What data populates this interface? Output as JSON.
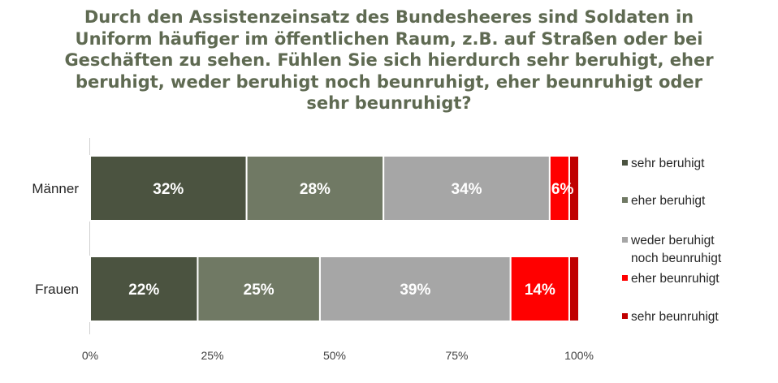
{
  "chart_data": {
    "type": "bar",
    "orientation": "horizontal",
    "stacked": true,
    "percent": true,
    "title_lines": [
      "Durch den Assistenzeinsatz des Bundesheeres sind Soldaten in",
      "Uniform häufiger im öffentlichen Raum, z.B. auf Straßen oder bei",
      "Geschäften zu sehen. Fühlen Sie sich hierdurch sehr beruhigt, eher",
      "beruhigt, weder beruhigt noch beunruhigt, eher beunruhigt oder",
      "sehr beunruhigt?"
    ],
    "categories": [
      "Männer",
      "Frauen"
    ],
    "series": [
      {
        "name": "sehr beruhigt",
        "values": [
          32,
          22
        ],
        "labels": [
          "32%",
          "22%"
        ],
        "color": "#4b5340"
      },
      {
        "name": "eher beruhigt",
        "values": [
          28,
          25
        ],
        "labels": [
          "28%",
          "25%"
        ],
        "color": "#707964"
      },
      {
        "name": "weder beruhigt noch beunruhigt",
        "values": [
          34,
          39
        ],
        "labels": [
          "34%",
          "39%"
        ],
        "color": "#a6a6a6"
      },
      {
        "name": "eher beunruhigt",
        "values": [
          4,
          12
        ],
        "labels": [
          "6%",
          "14%"
        ],
        "color": "#ff0000"
      },
      {
        "name": "sehr beunruhigt",
        "values": [
          2,
          2
        ],
        "labels": [
          "",
          ""
        ],
        "color": "#c00000"
      }
    ],
    "legend": {
      "position": "right",
      "items": [
        {
          "lines": [
            "sehr beruhigt"
          ],
          "color": "#4b5340"
        },
        {
          "lines": [
            "eher beruhigt"
          ],
          "color": "#707964"
        },
        {
          "lines": [
            "weder beruhigt",
            "noch beunruhigt"
          ],
          "color": "#a6a6a6"
        },
        {
          "lines": [
            "eher beunruhigt"
          ],
          "color": "#ff0000"
        },
        {
          "lines": [
            "sehr beunruhigt"
          ],
          "color": "#c00000"
        }
      ]
    },
    "xlim": [
      0,
      100
    ],
    "xticks": [
      0,
      25,
      50,
      75,
      100
    ],
    "xtick_labels": [
      "0%",
      "25%",
      "50%",
      "75%",
      "100%"
    ],
    "grid": false
  }
}
